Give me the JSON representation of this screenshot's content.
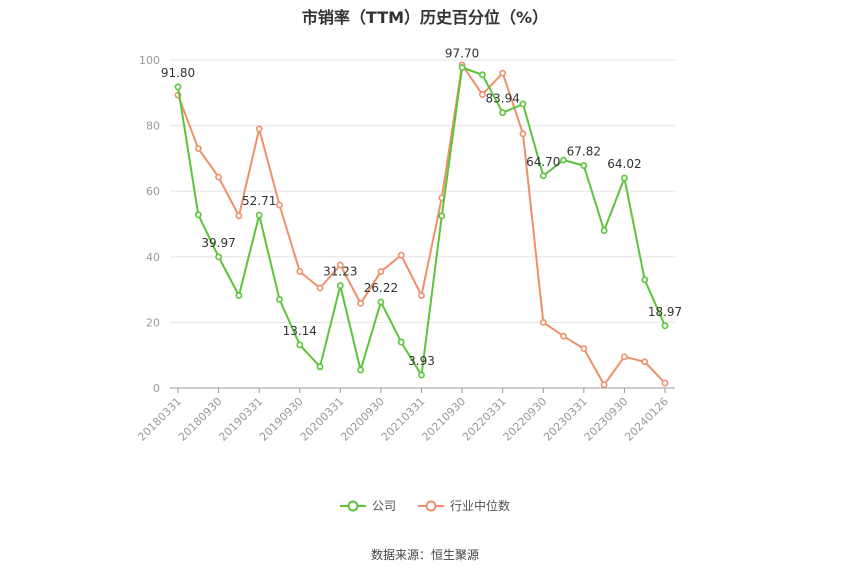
{
  "chart_data": {
    "type": "line",
    "title": "市销率（TTM）历史百分位（%）",
    "xlabel": "",
    "ylabel": "",
    "ylim": [
      0,
      100
    ],
    "yticks": [
      0,
      20,
      40,
      60,
      80,
      100
    ],
    "grid": true,
    "legend_position": "bottom",
    "x_tick_labels": [
      "20180331",
      "20180930",
      "20190331",
      "20190930",
      "20200331",
      "20200930",
      "20210331",
      "20210930",
      "20220331",
      "20220930",
      "20230331",
      "20230930",
      "20240126"
    ],
    "x": [
      "20180331",
      "20180630",
      "20180930",
      "20181231",
      "20190331",
      "20190630",
      "20190930",
      "20191231",
      "20200331",
      "20200630",
      "20200930",
      "20201231",
      "20210331",
      "20210630",
      "20210930",
      "20211231",
      "20220331",
      "20220630",
      "20220930",
      "20221231",
      "20230331",
      "20230630",
      "20230930",
      "20231231",
      "20240126"
    ],
    "series": [
      {
        "name": "公司",
        "color": "#5cc43a",
        "values": [
          91.8,
          52.8,
          39.97,
          28.2,
          52.71,
          27.0,
          13.14,
          6.5,
          31.23,
          5.5,
          26.22,
          14.0,
          3.93,
          52.5,
          97.7,
          95.5,
          83.94,
          86.6,
          64.7,
          69.5,
          67.82,
          48.0,
          64.02,
          33.0,
          18.97
        ],
        "labels": {
          "0": "91.80",
          "2": "39.97",
          "4": "52.71",
          "6": "13.14",
          "8": "31.23",
          "10": "26.22",
          "12": "3.93",
          "14": "97.70",
          "16": "83.94",
          "18": "64.70",
          "20": "67.82",
          "22": "64.02",
          "24": "18.97"
        }
      },
      {
        "name": "行业中位数",
        "color": "#f0906a",
        "values": [
          89.3,
          73.0,
          64.3,
          52.5,
          79.0,
          55.8,
          35.5,
          30.5,
          37.5,
          25.8,
          35.5,
          40.5,
          28.2,
          58.0,
          98.5,
          89.5,
          96.0,
          77.5,
          20.0,
          15.8,
          12.0,
          1.0,
          9.5,
          8.0,
          1.5
        ]
      }
    ]
  },
  "source_text": "数据来源：恒生聚源"
}
